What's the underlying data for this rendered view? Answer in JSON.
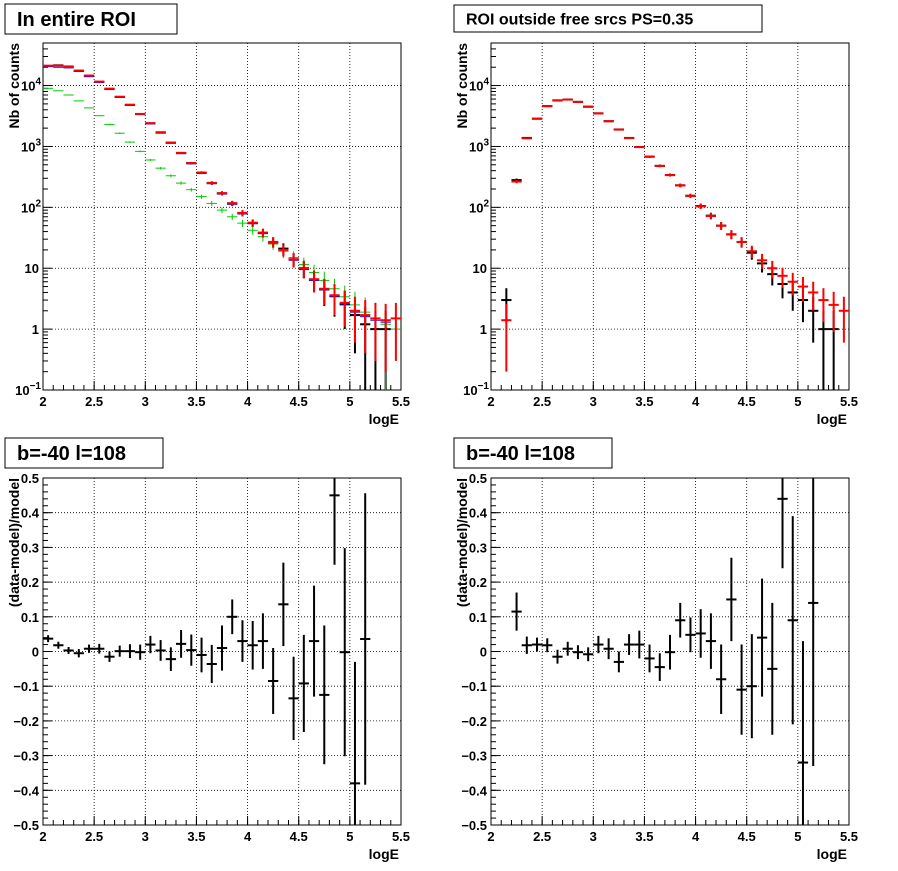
{
  "chart_data": [
    {
      "type": "scatter",
      "title": "In entire ROI",
      "xlabel": "logE",
      "ylabel": "Nb of counts",
      "xlim": [
        2,
        5.5
      ],
      "ylim": [
        0.1,
        50000
      ],
      "yscale": "log",
      "grid": true,
      "x_ticks": [
        "2",
        "2.5",
        "3",
        "3.5",
        "4",
        "4.5",
        "5",
        "5.5"
      ],
      "y_ticks": [
        {
          "v": 0.1,
          "b": "10",
          "e": "−1"
        },
        {
          "v": 1,
          "b": "1",
          "e": ""
        },
        {
          "v": 10,
          "b": "10",
          "e": ""
        },
        {
          "v": 100,
          "b": "10",
          "e": "2"
        },
        {
          "v": 1000,
          "b": "10",
          "e": "3"
        },
        {
          "v": 10000,
          "b": "10",
          "e": "4"
        }
      ],
      "series": [
        {
          "color": "#000000",
          "x": [
            2.05,
            2.15,
            2.25,
            2.35,
            2.45,
            2.55,
            2.65,
            2.75,
            2.85,
            2.95,
            3.05,
            3.15,
            3.25,
            3.35,
            3.45,
            3.55,
            3.65,
            3.75,
            3.85,
            3.95,
            4.05,
            4.15,
            4.25,
            4.35,
            4.45,
            4.55,
            4.65,
            4.75,
            4.85,
            4.95,
            5.05,
            5.15,
            5.25,
            5.35
          ],
          "y": [
            21000,
            21500,
            20500,
            17500,
            14500,
            11500,
            8800,
            6500,
            4800,
            3400,
            2400,
            1700,
            1150,
            780,
            530,
            370,
            250,
            170,
            116,
            80,
            55,
            38,
            27,
            21,
            14,
            10,
            6.5,
            4.5,
            3.5,
            2.6,
            1.7,
            1.2,
            1,
            1
          ],
          "err": [
            145,
            147,
            143,
            132,
            120,
            107,
            94,
            81,
            69,
            58,
            49,
            41,
            34,
            28,
            23,
            19,
            16,
            13,
            11,
            9,
            7.4,
            6.2,
            5.2,
            4.6,
            3.7,
            3.2,
            2.5,
            2.1,
            1.9,
            1.6,
            1.3,
            1.1,
            1,
            1
          ]
        },
        {
          "color": "#0000ff",
          "x": [
            2.05,
            2.15,
            2.25,
            2.35,
            2.45,
            2.55,
            2.65,
            2.75,
            2.85,
            2.95,
            3.05,
            3.15,
            3.25,
            3.35,
            3.45,
            3.55,
            3.65,
            3.75,
            3.85,
            3.95,
            4.05,
            4.15,
            4.25,
            4.35,
            4.45,
            4.55,
            4.65,
            4.75,
            4.85,
            4.95,
            5.05,
            5.15,
            5.25,
            5.35,
            5.45
          ],
          "y": [
            20500,
            20000,
            19500,
            17000,
            14000,
            11300,
            8600,
            6400,
            4700,
            3350,
            2350,
            1650,
            1130,
            760,
            520,
            360,
            245,
            165,
            112,
            78,
            54,
            37,
            26,
            20,
            13.5,
            9.5,
            6.3,
            4.4,
            3.4,
            2.5,
            1.9,
            1.6,
            1.4,
            1.3,
            1.5
          ],
          "err": [
            0,
            0,
            0,
            0,
            0,
            0,
            0,
            0,
            0,
            0,
            0,
            0,
            0,
            0,
            0,
            0,
            0,
            0,
            0,
            0,
            0,
            0,
            0,
            0,
            0,
            0,
            0,
            0,
            0,
            0,
            0,
            0,
            0,
            0,
            0
          ]
        },
        {
          "color": "#00cc00",
          "x": [
            2.05,
            2.15,
            2.25,
            2.35,
            2.45,
            2.55,
            2.65,
            2.75,
            2.85,
            2.95,
            3.05,
            3.15,
            3.25,
            3.35,
            3.45,
            3.55,
            3.65,
            3.75,
            3.85,
            3.95,
            4.05,
            4.15,
            4.25,
            4.35,
            4.45,
            4.55,
            4.65,
            4.75,
            4.85,
            4.95,
            5.05,
            5.15,
            5.25,
            5.35,
            5.45
          ],
          "y": [
            9000,
            8200,
            7000,
            5600,
            4300,
            3200,
            2300,
            1650,
            1180,
            830,
            600,
            440,
            330,
            250,
            195,
            150,
            116,
            90,
            70,
            55,
            42,
            33,
            25,
            19,
            15,
            11.5,
            8.5,
            6.3,
            4.6,
            3.4,
            2.5,
            1.9,
            1.5,
            1.2,
            1
          ],
          "err": [
            95,
            91,
            84,
            75,
            66,
            57,
            48,
            41,
            34,
            29,
            24,
            21,
            18,
            16,
            14,
            12,
            11,
            9.5,
            8.4,
            7.4,
            6.5,
            5.7,
            5,
            4.4,
            3.9,
            3.4,
            2.9,
            2.5,
            2.1,
            1.8,
            1.6,
            1.4,
            1.2,
            1.1,
            0.7
          ]
        },
        {
          "color": "#ff0000",
          "x": [
            2.05,
            2.15,
            2.25,
            2.35,
            2.45,
            2.55,
            2.65,
            2.75,
            2.85,
            2.95,
            3.05,
            3.15,
            3.25,
            3.35,
            3.45,
            3.55,
            3.65,
            3.75,
            3.85,
            3.95,
            4.05,
            4.15,
            4.25,
            4.35,
            4.45,
            4.55,
            4.65,
            4.75,
            4.85,
            4.95,
            5.05,
            5.15,
            5.25,
            5.35,
            5.45
          ],
          "y": [
            21200,
            21300,
            20200,
            17600,
            14600,
            11600,
            8900,
            6550,
            4850,
            3420,
            2410,
            1710,
            1160,
            785,
            535,
            372,
            252,
            171,
            117,
            81,
            56,
            38.5,
            27,
            20,
            14,
            10,
            6.6,
            4.6,
            3.6,
            2.7,
            2,
            1.7,
            1.5,
            1.4,
            1.5
          ],
          "err": [
            146,
            146,
            142,
            133,
            121,
            108,
            94,
            81,
            70,
            58,
            49,
            41,
            34,
            28,
            23,
            19,
            16,
            13,
            11,
            9,
            7.5,
            6.2,
            5.2,
            4.5,
            3.7,
            3.2,
            2.6,
            2.1,
            1.9,
            1.6,
            1.4,
            1.3,
            1.2,
            1.2,
            1.2
          ]
        }
      ]
    },
    {
      "type": "scatter",
      "title": "ROI outside free srcs PS=0.35",
      "xlabel": "logE",
      "ylabel": "Nb of counts",
      "xlim": [
        2,
        5.5
      ],
      "ylim": [
        0.1,
        50000
      ],
      "yscale": "log",
      "grid": true,
      "x_ticks": [
        "2",
        "2.5",
        "3",
        "3.5",
        "4",
        "4.5",
        "5",
        "5.5"
      ],
      "y_ticks": [
        {
          "v": 0.1,
          "b": "10",
          "e": "−1"
        },
        {
          "v": 1,
          "b": "1",
          "e": ""
        },
        {
          "v": 10,
          "b": "10",
          "e": ""
        },
        {
          "v": 100,
          "b": "10",
          "e": "2"
        },
        {
          "v": 1000,
          "b": "10",
          "e": "3"
        },
        {
          "v": 10000,
          "b": "10",
          "e": "4"
        }
      ],
      "series": [
        {
          "color": "#000000",
          "x": [
            2.15,
            2.25,
            2.35,
            2.45,
            2.55,
            2.65,
            2.75,
            2.85,
            2.95,
            3.05,
            3.15,
            3.25,
            3.35,
            3.45,
            3.55,
            3.65,
            3.75,
            3.85,
            3.95,
            4.05,
            4.15,
            4.25,
            4.35,
            4.45,
            4.55,
            4.65,
            4.75,
            4.85,
            4.95,
            5.05,
            5.15,
            5.25,
            5.35
          ],
          "y": [
            3,
            280,
            1380,
            2850,
            4600,
            5700,
            5900,
            5400,
            4500,
            3500,
            2600,
            1900,
            1380,
            980,
            680,
            480,
            340,
            230,
            155,
            105,
            73,
            50,
            36,
            27,
            18,
            12,
            8,
            5.5,
            4,
            3,
            2,
            1,
            1
          ],
          "err": [
            1.7,
            17,
            37,
            53,
            68,
            75,
            77,
            73,
            67,
            59,
            51,
            44,
            37,
            31,
            26,
            22,
            18,
            15,
            12,
            10,
            8.5,
            7.1,
            6,
            5.2,
            4.2,
            3.5,
            2.8,
            2.3,
            2,
            1.7,
            1.4,
            1,
            1
          ]
        },
        {
          "color": "#ff0000",
          "x": [
            2.15,
            2.25,
            2.35,
            2.45,
            2.55,
            2.65,
            2.75,
            2.85,
            2.95,
            3.05,
            3.15,
            3.25,
            3.35,
            3.45,
            3.55,
            3.65,
            3.75,
            3.85,
            3.95,
            4.05,
            4.15,
            4.25,
            4.35,
            4.45,
            4.55,
            4.65,
            4.75,
            4.85,
            4.95,
            5.05,
            5.15,
            5.25,
            5.35,
            5.45
          ],
          "y": [
            1.4,
            265,
            1360,
            2870,
            4580,
            5720,
            5880,
            5380,
            4480,
            3480,
            2590,
            1890,
            1370,
            975,
            678,
            478,
            338,
            229,
            154,
            104,
            72,
            50,
            36,
            27,
            19,
            13.5,
            10,
            7.5,
            6,
            5,
            4,
            3,
            2.5,
            2
          ],
          "err": [
            1.2,
            16,
            37,
            54,
            68,
            76,
            77,
            73,
            67,
            59,
            51,
            43,
            37,
            31,
            26,
            22,
            18,
            15,
            12,
            10,
            8.5,
            7.1,
            6,
            5.2,
            4.4,
            3.7,
            3.2,
            2.7,
            2.4,
            2.2,
            2,
            1.7,
            1.6,
            1.4
          ]
        }
      ]
    },
    {
      "type": "scatter",
      "title": "b=-40 l=108",
      "xlabel": "logE",
      "ylabel": "(data-model)/model",
      "xlim": [
        2,
        5.5
      ],
      "ylim": [
        -0.5,
        0.5
      ],
      "grid": true,
      "x_ticks": [
        "2",
        "2.5",
        "3",
        "3.5",
        "4",
        "4.5",
        "5",
        "5.5"
      ],
      "y_ticks": [
        "−0.5",
        "−0.4",
        "−0.3",
        "−0.2",
        "−0.1",
        "0",
        "0.1",
        "0.2",
        "0.3",
        "0.4",
        "0.5"
      ],
      "series": [
        {
          "color": "#000000",
          "x": [
            2.05,
            2.15,
            2.25,
            2.35,
            2.45,
            2.55,
            2.65,
            2.75,
            2.85,
            2.95,
            3.05,
            3.15,
            3.25,
            3.35,
            3.45,
            3.55,
            3.65,
            3.75,
            3.85,
            3.95,
            4.05,
            4.15,
            4.25,
            4.35,
            4.45,
            4.55,
            4.65,
            4.75,
            4.85,
            4.95,
            5.05,
            5.15
          ],
          "y": [
            0.037,
            0.018,
            0.003,
            -0.005,
            0.008,
            0.008,
            -0.015,
            0.001,
            0.001,
            -0.002,
            0.02,
            0.003,
            -0.022,
            0.022,
            0.004,
            -0.01,
            -0.036,
            0.01,
            0.1,
            0.03,
            0.018,
            0.03,
            -0.085,
            0.136,
            -0.135,
            -0.092,
            0.03,
            -0.125,
            0.45,
            -0.002,
            -0.38,
            0.036
          ],
          "err": [
            0.01,
            0.01,
            0.01,
            0.012,
            0.012,
            0.014,
            0.015,
            0.016,
            0.02,
            0.022,
            0.025,
            0.03,
            0.034,
            0.04,
            0.045,
            0.05,
            0.055,
            0.065,
            0.05,
            0.06,
            0.07,
            0.08,
            0.095,
            0.12,
            0.12,
            0.14,
            0.16,
            0.2,
            0.2,
            0.3,
            0.35,
            0.42
          ]
        }
      ]
    },
    {
      "type": "scatter",
      "title": "b=-40 l=108",
      "xlabel": "logE",
      "ylabel": "(data-model)/model",
      "xlim": [
        2,
        5.5
      ],
      "ylim": [
        -0.5,
        0.5
      ],
      "grid": true,
      "x_ticks": [
        "2",
        "2.5",
        "3",
        "3.5",
        "4",
        "4.5",
        "5",
        "5.5"
      ],
      "y_ticks": [
        "−0.5",
        "−0.4",
        "−0.3",
        "−0.2",
        "−0.1",
        "0",
        "0.1",
        "0.2",
        "0.3",
        "0.4",
        "0.5"
      ],
      "series": [
        {
          "color": "#000000",
          "x": [
            2.25,
            2.35,
            2.45,
            2.55,
            2.65,
            2.75,
            2.85,
            2.95,
            3.05,
            3.15,
            3.25,
            3.35,
            3.45,
            3.55,
            3.65,
            3.75,
            3.85,
            3.95,
            4.05,
            4.15,
            4.25,
            4.35,
            4.45,
            4.55,
            4.65,
            4.75,
            4.85,
            4.95,
            5.05,
            5.15
          ],
          "y": [
            0.115,
            0.018,
            0.02,
            0.018,
            -0.015,
            0.008,
            -0.002,
            -0.008,
            0.02,
            0.008,
            -0.03,
            0.02,
            0.02,
            -0.02,
            -0.045,
            -0.002,
            0.09,
            0.048,
            0.052,
            0.03,
            -0.08,
            0.15,
            -0.11,
            -0.1,
            0.04,
            -0.05,
            0.44,
            0.09,
            -0.32,
            0.14
          ],
          "err": [
            0.055,
            0.025,
            0.02,
            0.02,
            0.02,
            0.02,
            0.02,
            0.02,
            0.025,
            0.03,
            0.03,
            0.03,
            0.04,
            0.04,
            0.04,
            0.05,
            0.05,
            0.05,
            0.07,
            0.08,
            0.1,
            0.12,
            0.13,
            0.15,
            0.17,
            0.19,
            0.2,
            0.3,
            0.35,
            0.47
          ]
        }
      ]
    }
  ]
}
